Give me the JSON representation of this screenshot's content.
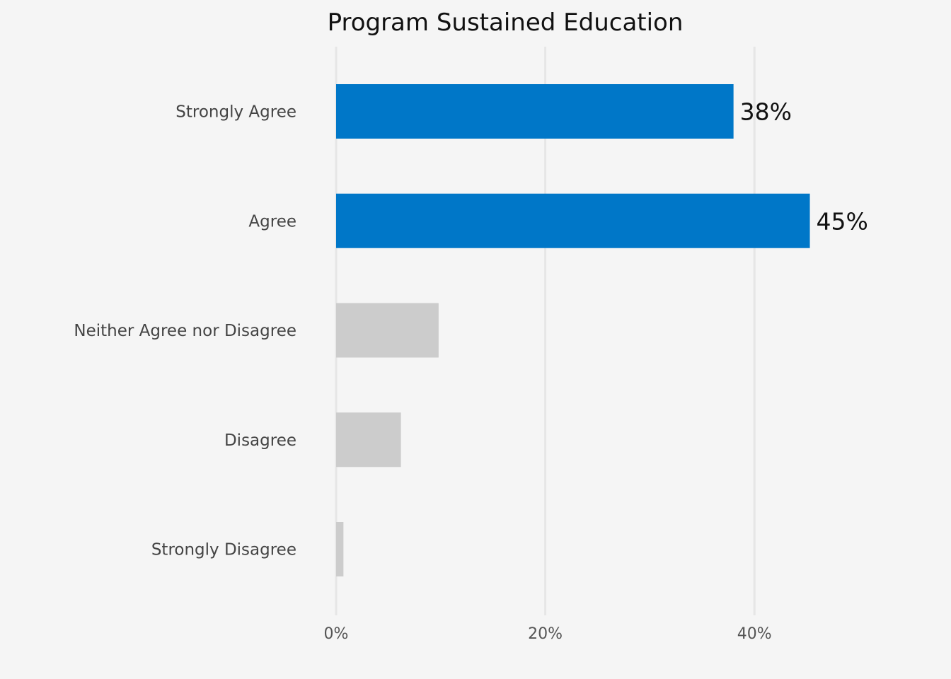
{
  "chart_data": {
    "type": "bar",
    "orientation": "horizontal",
    "title": "Program Sustained Education",
    "xlabel": "",
    "ylabel": "",
    "categories": [
      "Strongly Agree",
      "Agree",
      "Neither Agree nor Disagree",
      "Disagree",
      "Strongly Disagree"
    ],
    "values": [
      38,
      45.3,
      9.8,
      6.2,
      0.7
    ],
    "data_labels": [
      "38%",
      "45%",
      "",
      "",
      ""
    ],
    "colors": [
      "#0077c8",
      "#0077c8",
      "#cccccc",
      "#cccccc",
      "#cccccc"
    ],
    "xlim": [
      0,
      59
    ],
    "xticks": [
      0,
      20,
      40
    ],
    "xtick_labels": [
      "0%",
      "20%",
      "40%"
    ],
    "grid": true,
    "gridline_color": "#e6e6e6",
    "background": "#f5f5f5"
  }
}
